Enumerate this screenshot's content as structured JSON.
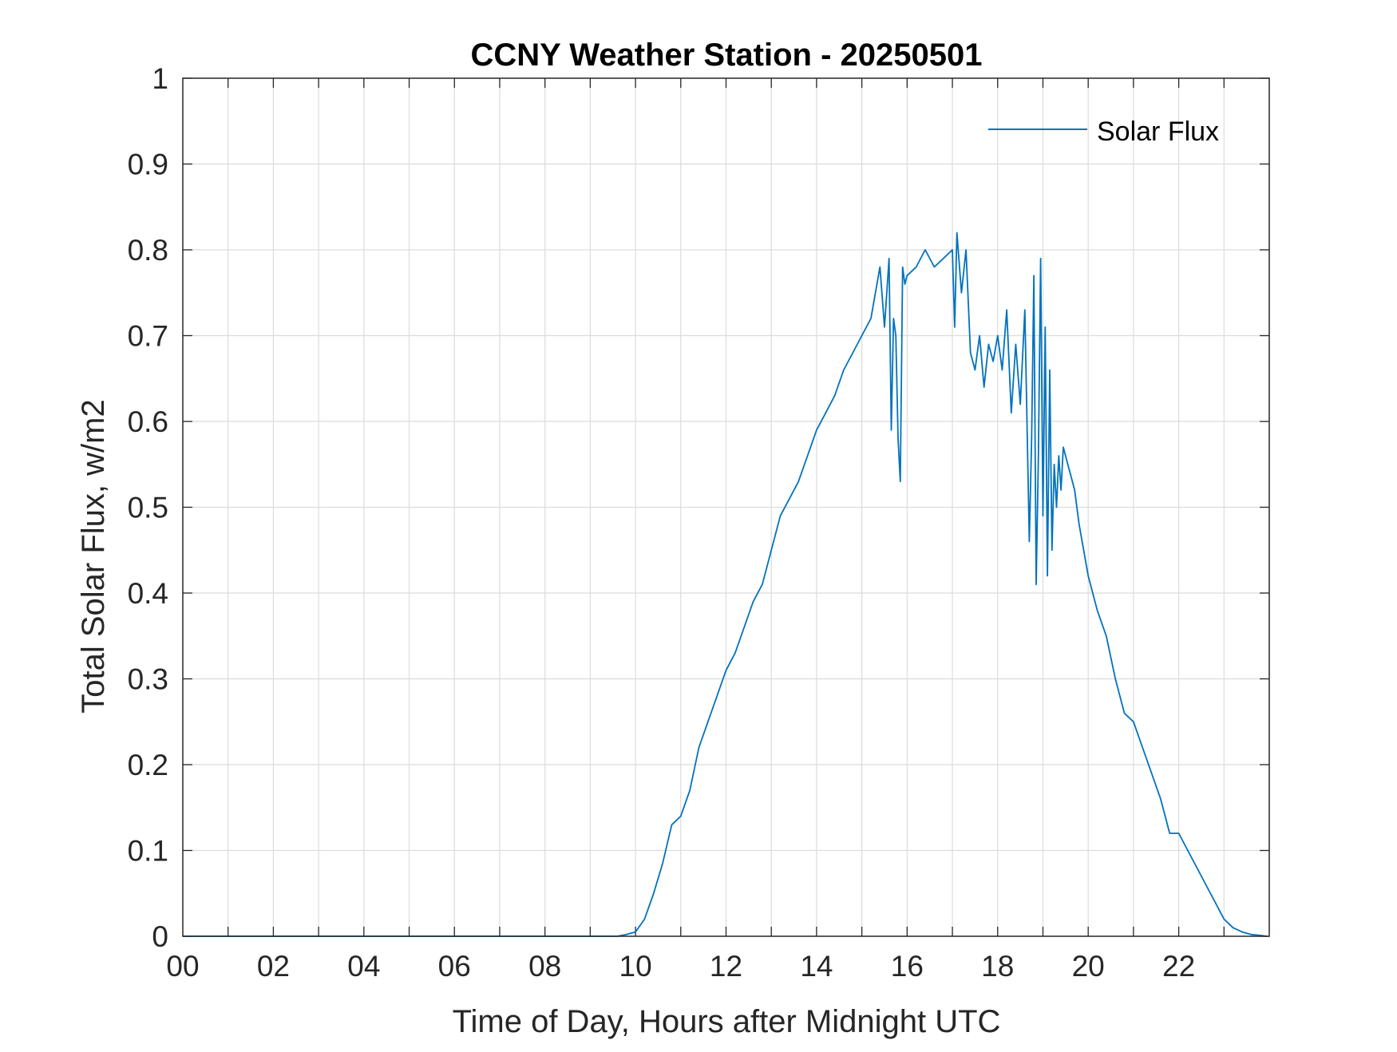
{
  "chart_data": {
    "type": "line",
    "title": "CCNY Weather Station - 20250501",
    "xlabel": "Time of Day, Hours after Midnight UTC",
    "ylabel": "Total Solar Flux, w/m2",
    "xlim": [
      0,
      24
    ],
    "ylim": [
      0,
      1
    ],
    "x_ticks": [
      0,
      2,
      4,
      6,
      8,
      10,
      12,
      14,
      16,
      18,
      20,
      22
    ],
    "x_tick_labels": [
      "00",
      "02",
      "04",
      "06",
      "08",
      "10",
      "12",
      "14",
      "16",
      "18",
      "20",
      "22"
    ],
    "y_ticks": [
      0,
      0.1,
      0.2,
      0.3,
      0.4,
      0.5,
      0.6,
      0.7,
      0.8,
      0.9,
      1
    ],
    "y_tick_labels": [
      "0",
      "0.1",
      "0.2",
      "0.3",
      "0.4",
      "0.5",
      "0.6",
      "0.7",
      "0.8",
      "0.9",
      "1"
    ],
    "grid": true,
    "legend_position": "top-right",
    "series": [
      {
        "name": "Solar Flux",
        "color": "#0072BD",
        "x": [
          0,
          9.6,
          9.8,
          10.0,
          10.2,
          10.4,
          10.6,
          10.8,
          11.0,
          11.2,
          11.4,
          11.6,
          11.8,
          12.0,
          12.2,
          12.4,
          12.6,
          12.8,
          13.0,
          13.2,
          13.4,
          13.6,
          13.8,
          14.0,
          14.2,
          14.4,
          14.6,
          14.8,
          15.0,
          15.2,
          15.4,
          15.5,
          15.6,
          15.65,
          15.7,
          15.75,
          15.8,
          15.85,
          15.9,
          15.95,
          16.0,
          16.2,
          16.4,
          16.6,
          16.8,
          17.0,
          17.05,
          17.1,
          17.2,
          17.3,
          17.4,
          17.5,
          17.6,
          17.7,
          17.8,
          17.9,
          18.0,
          18.1,
          18.2,
          18.3,
          18.4,
          18.5,
          18.6,
          18.7,
          18.75,
          18.8,
          18.85,
          18.9,
          18.95,
          19.0,
          19.05,
          19.1,
          19.15,
          19.2,
          19.25,
          19.3,
          19.35,
          19.4,
          19.45,
          19.5,
          19.55,
          19.6,
          19.7,
          19.8,
          19.9,
          20.0,
          20.2,
          20.4,
          20.6,
          20.8,
          21.0,
          21.2,
          21.4,
          21.6,
          21.7,
          21.8,
          22.0,
          22.2,
          22.4,
          22.6,
          22.8,
          23.0,
          23.2,
          23.4,
          23.6,
          23.8,
          23.95
        ],
        "values": [
          0,
          0,
          0.002,
          0.005,
          0.02,
          0.05,
          0.085,
          0.13,
          0.14,
          0.17,
          0.22,
          0.25,
          0.28,
          0.31,
          0.33,
          0.36,
          0.39,
          0.41,
          0.45,
          0.49,
          0.51,
          0.53,
          0.56,
          0.59,
          0.61,
          0.63,
          0.66,
          0.68,
          0.7,
          0.72,
          0.78,
          0.71,
          0.79,
          0.59,
          0.72,
          0.7,
          0.58,
          0.53,
          0.78,
          0.76,
          0.77,
          0.78,
          0.8,
          0.78,
          0.79,
          0.8,
          0.71,
          0.82,
          0.75,
          0.8,
          0.68,
          0.66,
          0.7,
          0.64,
          0.69,
          0.67,
          0.7,
          0.66,
          0.73,
          0.61,
          0.69,
          0.62,
          0.73,
          0.46,
          0.58,
          0.77,
          0.41,
          0.56,
          0.79,
          0.49,
          0.71,
          0.42,
          0.66,
          0.45,
          0.55,
          0.5,
          0.56,
          0.52,
          0.57,
          0.56,
          0.55,
          0.54,
          0.52,
          0.48,
          0.45,
          0.42,
          0.38,
          0.35,
          0.3,
          0.26,
          0.25,
          0.22,
          0.19,
          0.16,
          0.14,
          0.12,
          0.12,
          0.1,
          0.08,
          0.06,
          0.04,
          0.02,
          0.01,
          0.005,
          0.002,
          0.001,
          0
        ]
      }
    ]
  }
}
